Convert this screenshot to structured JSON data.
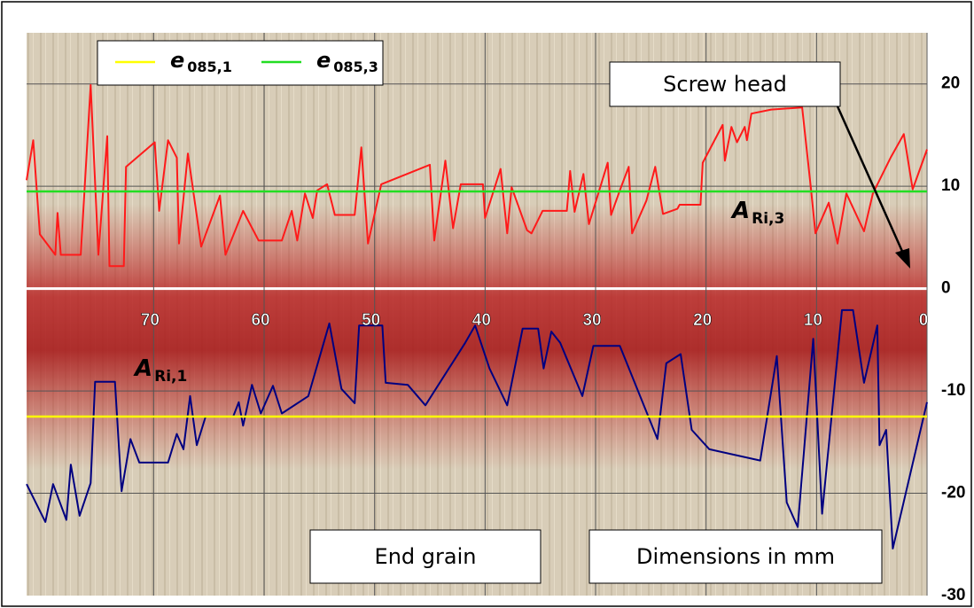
{
  "chart_data": {
    "type": "line",
    "xlim": [
      81.5,
      0
    ],
    "ylim": [
      -30,
      25
    ],
    "xticks": [
      70,
      60,
      50,
      40,
      30,
      20,
      10,
      0
    ],
    "yticks": [
      20,
      10,
      0,
      -10,
      -20,
      -30
    ],
    "grid": true,
    "lines": [
      {
        "color": "#ff1a1a",
        "x": [
          81.5,
          80.9,
          80.3,
          78.9,
          78.7,
          78.4,
          76.6,
          75.7,
          75.0,
          74.2,
          74.0,
          72.7,
          72.5,
          69.9,
          69.5,
          68.7,
          67.9,
          67.7,
          66.9,
          65.7,
          64.0,
          63.5,
          61.9,
          60.5,
          58.4,
          57.5,
          57.0,
          56.3,
          55.6,
          55.2,
          54.3,
          53.6,
          51.8,
          51.2,
          50.6,
          49.4,
          45.0,
          44.6,
          43.6,
          42.9,
          42.2,
          40.2,
          40.0,
          38.6,
          38.0,
          37.6,
          36.2,
          35.8,
          34.8,
          32.6,
          32.3,
          31.9,
          31.1,
          30.6,
          28.9,
          28.6,
          27.8,
          27.0,
          26.7,
          25.4,
          24.6,
          23.9,
          22.6,
          22.4,
          20.5,
          20.3,
          18.5,
          18.3,
          17.7,
          17.2,
          16.5,
          16.3,
          15.9,
          14.1,
          11.3,
          10.5,
          10.1,
          8.9,
          8.1,
          7.3,
          5.7,
          4.9,
          3.3,
          2.1,
          1.3,
          0
        ],
        "values": [
          10.6,
          14.5,
          5.3,
          3.3,
          7.4,
          3.3,
          3.3,
          19.9,
          3.3,
          14.9,
          2.2,
          2.2,
          11.9,
          14.3,
          7.6,
          14.5,
          12.8,
          4.4,
          13.2,
          4.1,
          9.1,
          3.3,
          7.6,
          4.7,
          4.7,
          7.6,
          4.7,
          9.3,
          6.9,
          9.6,
          10.2,
          7.2,
          7.2,
          13.8,
          4.4,
          10.2,
          12.1,
          4.7,
          12.5,
          5.9,
          10.2,
          10.2,
          6.9,
          11.7,
          5.4,
          9.9,
          5.7,
          5.4,
          7.6,
          7.6,
          11.5,
          7.5,
          11.2,
          6.3,
          12.3,
          7.2,
          9.6,
          11.9,
          5.4,
          8.6,
          11.9,
          7.3,
          7.8,
          8.2,
          8.2,
          12.3,
          16.0,
          12.5,
          15.8,
          14.3,
          15.8,
          14.5,
          17.1,
          17.5,
          17.7,
          9.7,
          5.4,
          8.4,
          4.4,
          9.3,
          5.6,
          9.3,
          12.8,
          15.1,
          9.7,
          13.6
        ]
      },
      {
        "color": "#000080",
        "x": [
          81.5,
          79.8,
          79.1,
          77.9,
          77.5,
          76.7,
          75.7,
          75.3,
          73.5,
          72.9,
          72.1,
          71.3,
          68.7,
          67.9,
          67.3,
          66.7,
          66.1,
          65.3,
          62.8,
          62.3,
          61.9,
          61.1,
          60.3,
          59.2,
          58.4,
          56.0,
          54.1,
          53.0,
          51.8,
          51.4,
          49.3,
          49.0,
          47.0,
          45.4,
          41.8,
          40.9,
          39.6,
          38.0,
          36.6,
          35.2,
          34.7,
          34.0,
          33.2,
          31.2,
          30.2,
          28.6,
          27.8,
          24.4,
          23.6,
          22.3,
          21.3,
          19.7,
          15.1,
          13.6,
          12.7,
          11.7,
          10.3,
          9.5,
          7.7,
          6.7,
          5.7,
          4.5,
          4.3,
          3.7,
          3.1,
          0
        ],
        "values": [
          -19.1,
          -22.8,
          -19.1,
          -22.6,
          -17.2,
          -22.2,
          -19.0,
          -9.1,
          -9.1,
          -19.8,
          -14.7,
          -17.0,
          -17.0,
          -14.2,
          -15.7,
          -10.5,
          -15.3,
          -12.5,
          -12.5,
          -11.1,
          -13.4,
          -9.4,
          -12.2,
          -9.5,
          -12.2,
          -10.5,
          -3.4,
          -9.8,
          -11.2,
          -3.6,
          -3.6,
          -9.2,
          -9.4,
          -11.4,
          -5.3,
          -3.6,
          -7.8,
          -11.4,
          -3.9,
          -3.9,
          -7.8,
          -4.2,
          -5.3,
          -10.5,
          -5.6,
          -5.6,
          -5.6,
          -14.7,
          -7.3,
          -6.4,
          -13.8,
          -15.7,
          -16.8,
          -6.6,
          -20.9,
          -23.3,
          -4.9,
          -22.0,
          -2.1,
          -2.1,
          -9.2,
          -3.6,
          -15.3,
          -13.8,
          -25.4,
          -11.1
        ]
      }
    ],
    "series": [
      {
        "name": "e",
        "subscript": "085,1",
        "color": "#ffff00",
        "value": -12.5
      },
      {
        "name": "e",
        "subscript": "085,3",
        "color": "#22dd22",
        "value": 9.5
      }
    ],
    "labels": [
      {
        "text": "A",
        "subscript": "Ri,3"
      },
      {
        "text": "A",
        "subscript": "Ri,1"
      }
    ],
    "annotations": [
      "Screw head",
      "End grain",
      "Dimensions in mm"
    ]
  }
}
